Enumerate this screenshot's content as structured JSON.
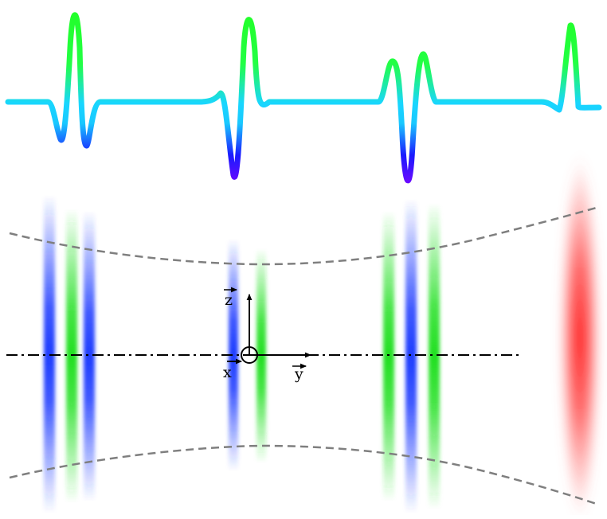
{
  "diagram": {
    "axis_labels": {
      "z": "z",
      "x": "x",
      "y": "y"
    },
    "colors": {
      "signal_gradient": [
        "#8a00ff",
        "#1a1aff",
        "#19d6ff",
        "#22ff22"
      ],
      "blue_band": "#1f3dff",
      "green_band": "#23e023",
      "red_band": "#ff2a2a",
      "beam_boundary": "#7f7f7f",
      "optical_axis": "#000000"
    },
    "bands": [
      {
        "group": "left",
        "color": "blue"
      },
      {
        "group": "left",
        "color": "green"
      },
      {
        "group": "left",
        "color": "blue"
      },
      {
        "group": "center",
        "color": "blue"
      },
      {
        "group": "center",
        "color": "green"
      },
      {
        "group": "right",
        "color": "green"
      },
      {
        "group": "right",
        "color": "blue"
      },
      {
        "group": "right",
        "color": "green"
      },
      {
        "group": "far-right",
        "color": "red"
      }
    ]
  }
}
